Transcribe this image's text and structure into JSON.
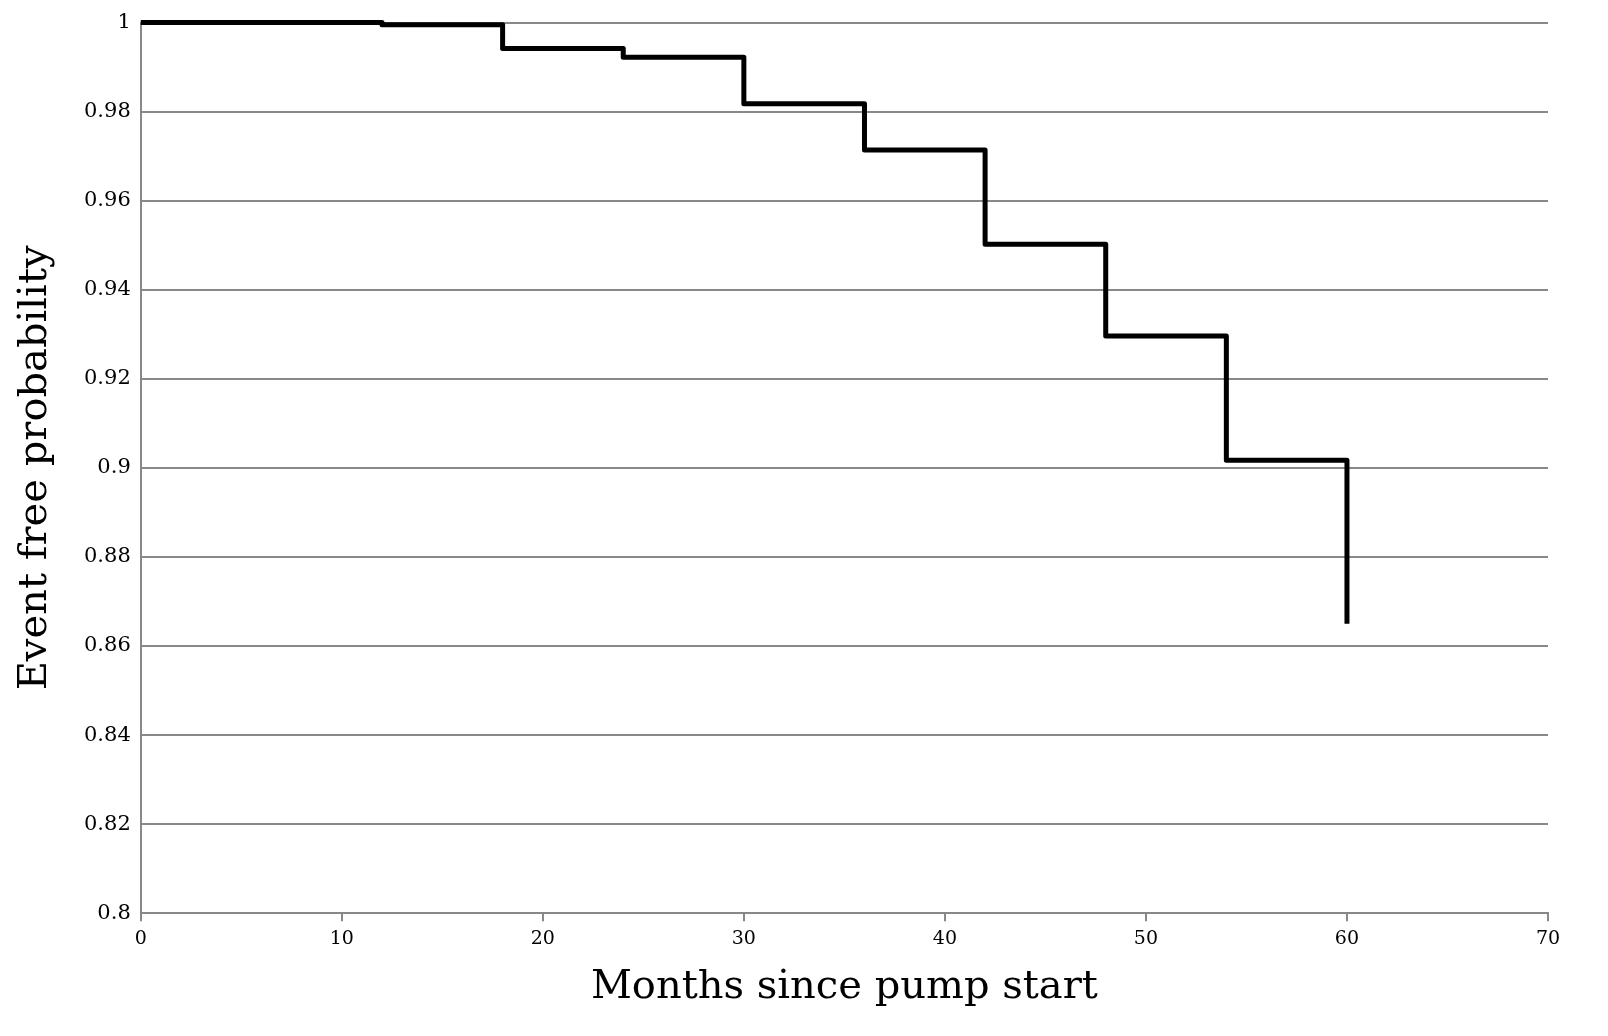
{
  "chart_data": {
    "type": "step",
    "xlabel": "Months since pump start",
    "ylabel": "Event free probability",
    "x": [
      0,
      12,
      18,
      24,
      30,
      36,
      42,
      48,
      54,
      60
    ],
    "series": [
      {
        "color": "#000000",
        "values": [
          1,
          0.9995,
          0.9942,
          0.9922,
          0.9818,
          0.9714,
          0.9502,
          0.9296,
          0.9017,
          0.865
        ]
      }
    ],
    "xlim": [
      0,
      70
    ],
    "xticks": [
      0,
      10,
      20,
      30,
      40,
      50,
      60,
      70
    ],
    "ylim": [
      0.8,
      1
    ],
    "yticks": [
      0.8,
      0.82,
      0.84,
      0.86,
      0.88,
      0.9,
      0.92,
      0.94,
      0.96,
      0.98,
      1
    ],
    "grid": "y",
    "legend": false,
    "marker": "none",
    "line_style": "solid"
  }
}
